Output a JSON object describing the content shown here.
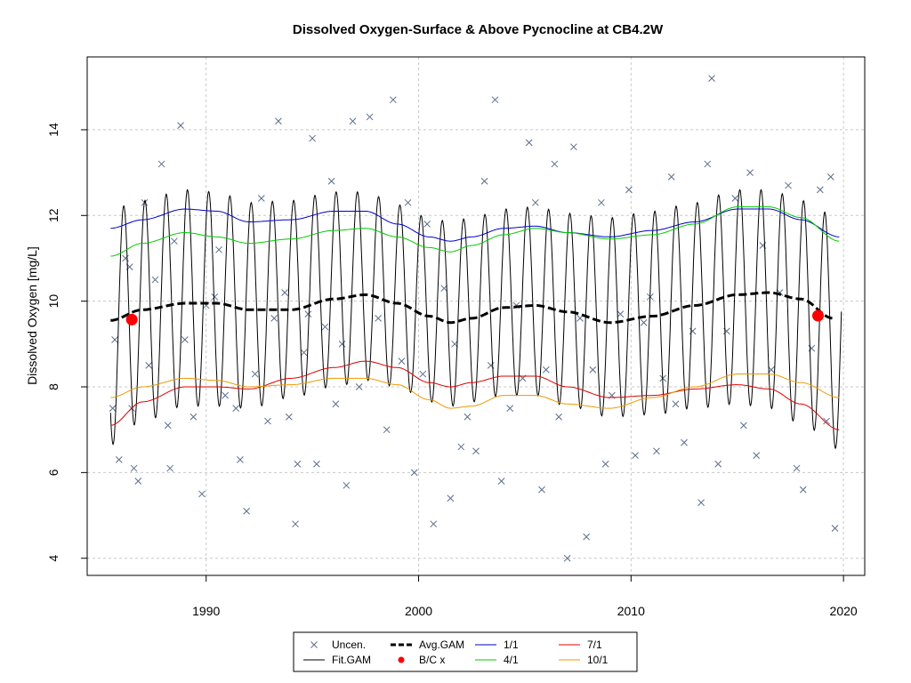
{
  "chart_data": {
    "type": "line",
    "title": "Dissolved Oxygen-Surface & Above Pycnocline at CB4.2W",
    "xlabel": "",
    "ylabel": "Dissolved Oxygen [mg/L]",
    "xlim": [
      1984.4,
      2021.0
    ],
    "ylim": [
      3.6,
      15.7
    ],
    "xticks": [
      1990,
      2000,
      2010,
      2020
    ],
    "yticks": [
      4,
      6,
      8,
      10,
      12,
      14
    ],
    "grid": true,
    "legend_position": "bottom-center",
    "legend": [
      {
        "label": "Uncen.",
        "kind": "cross",
        "color": "#5a6e8c"
      },
      {
        "label": "Avg.GAM",
        "kind": "dashed-line",
        "color": "#000000"
      },
      {
        "label": "1/1",
        "kind": "line",
        "color": "#0000cc"
      },
      {
        "label": "7/1",
        "kind": "line",
        "color": "#dd0000"
      },
      {
        "label": "Fit.GAM",
        "kind": "line",
        "color": "#000000"
      },
      {
        "label": "B/C x",
        "kind": "dot",
        "color": "#ff0000"
      },
      {
        "label": "4/1",
        "kind": "line",
        "color": "#00cc00"
      },
      {
        "label": "10/1",
        "kind": "line",
        "color": "#ee9900"
      }
    ],
    "series": [
      {
        "name": "1/1",
        "color": "#0000cc",
        "x": [
          1985.5,
          1987,
          1989,
          1990.5,
          1992,
          1994,
          1996,
          1997.5,
          1999,
          2000.5,
          2001.5,
          2002.5,
          2004,
          2005.5,
          2007,
          2009,
          2011,
          2013,
          2015,
          2016.5,
          2018,
          2019.8
        ],
        "values": [
          11.7,
          11.9,
          12.15,
          12.1,
          11.85,
          11.9,
          12.1,
          12.1,
          11.8,
          11.5,
          11.4,
          11.5,
          11.7,
          11.75,
          11.6,
          11.5,
          11.65,
          11.85,
          12.15,
          12.15,
          11.9,
          11.5
        ]
      },
      {
        "name": "4/1",
        "color": "#00cc00",
        "x": [
          1985.5,
          1987,
          1989,
          1990.5,
          1992,
          1994,
          1996,
          1997.5,
          1999,
          2000.5,
          2001.5,
          2002.5,
          2004,
          2005.5,
          2007,
          2009,
          2011,
          2013,
          2015,
          2016.5,
          2018,
          2019.8
        ],
        "values": [
          11.05,
          11.35,
          11.6,
          11.5,
          11.35,
          11.45,
          11.65,
          11.7,
          11.5,
          11.25,
          11.15,
          11.3,
          11.55,
          11.7,
          11.6,
          11.45,
          11.55,
          11.8,
          12.2,
          12.2,
          11.95,
          11.4
        ]
      },
      {
        "name": "7/1",
        "color": "#dd0000",
        "x": [
          1985.5,
          1987,
          1989,
          1990.5,
          1992,
          1994,
          1996,
          1997.5,
          1999,
          2000.5,
          2001.5,
          2002.5,
          2004,
          2005.5,
          2007,
          2009,
          2011,
          2013,
          2015,
          2016.5,
          2018,
          2019.8
        ],
        "values": [
          7.1,
          7.65,
          8.0,
          8.0,
          7.95,
          8.2,
          8.45,
          8.6,
          8.45,
          8.1,
          8.0,
          8.1,
          8.25,
          8.25,
          8.0,
          7.75,
          7.8,
          7.95,
          8.05,
          7.95,
          7.6,
          7.0
        ]
      },
      {
        "name": "10/1",
        "color": "#ee9900",
        "x": [
          1985.5,
          1987,
          1989,
          1990.5,
          1992,
          1994,
          1996,
          1997.5,
          1999,
          2000.5,
          2001.5,
          2002.5,
          2004,
          2005.5,
          2007,
          2009,
          2011,
          2013,
          2015,
          2016.5,
          2018,
          2019.8
        ],
        "values": [
          7.75,
          8.0,
          8.2,
          8.15,
          8.0,
          8.05,
          8.2,
          8.2,
          8.05,
          7.7,
          7.5,
          7.55,
          7.8,
          7.8,
          7.6,
          7.5,
          7.75,
          8.0,
          8.3,
          8.3,
          8.1,
          7.75
        ]
      },
      {
        "name": "Avg.GAM",
        "color": "#000000",
        "dash": true,
        "x": [
          1985.5,
          1987,
          1989,
          1990.5,
          1992,
          1994,
          1996,
          1997.5,
          1999,
          2000.5,
          2001.5,
          2002.5,
          2004,
          2005.5,
          2007,
          2009,
          2011,
          2013,
          2015,
          2016.5,
          2018,
          2019.5
        ],
        "values": [
          9.55,
          9.8,
          9.95,
          9.95,
          9.8,
          9.8,
          10.05,
          10.15,
          9.95,
          9.65,
          9.5,
          9.6,
          9.85,
          9.9,
          9.75,
          9.5,
          9.65,
          9.9,
          10.15,
          10.2,
          10.05,
          9.6
        ]
      },
      {
        "name": "Fit.GAM",
        "color": "#000000",
        "description": "seasonal oscillation, one peak per year, peaks near the 1/1 curve and troughs near the 7/1 curve",
        "x_range": [
          1985.5,
          2019.9
        ]
      }
    ],
    "bc_points": [
      {
        "label": "B/C x",
        "x": 1986.5,
        "y": 9.57
      },
      {
        "label": "B/C x",
        "x": 2018.8,
        "y": 9.66
      }
    ],
    "uncensored_points": {
      "x": [
        1985.6,
        1985.7,
        1985.9,
        1986.2,
        1986.4,
        1986.5,
        1986.6,
        1986.8,
        1987.1,
        1987.3,
        1987.6,
        1987.9,
        1988.2,
        1988.3,
        1988.5,
        1988.8,
        1989.0,
        1989.4,
        1989.8,
        1990.0,
        1990.4,
        1990.6,
        1990.9,
        1991.4,
        1991.6,
        1991.9,
        1992.3,
        1992.6,
        1992.9,
        1993.2,
        1993.4,
        1993.7,
        1993.9,
        1994.2,
        1994.3,
        1994.6,
        1994.8,
        1995.0,
        1995.2,
        1995.6,
        1995.9,
        1996.1,
        1996.4,
        1996.6,
        1996.9,
        1997.2,
        1997.7,
        1998.1,
        1998.5,
        1998.8,
        1999.2,
        1999.5,
        1999.8,
        2000.2,
        2000.4,
        2000.7,
        2001.2,
        2001.5,
        2001.7,
        2002.0,
        2002.3,
        2002.7,
        2003.1,
        2003.4,
        2003.6,
        2003.9,
        2004.3,
        2004.6,
        2004.9,
        2005.2,
        2005.5,
        2005.8,
        2006.0,
        2006.4,
        2006.6,
        2007.0,
        2007.3,
        2007.6,
        2007.9,
        2008.2,
        2008.6,
        2008.8,
        2009.1,
        2009.5,
        2009.9,
        2010.2,
        2010.6,
        2010.9,
        2011.2,
        2011.5,
        2011.9,
        2012.1,
        2012.5,
        2012.9,
        2013.3,
        2013.6,
        2013.8,
        2014.1,
        2014.5,
        2014.9,
        2015.3,
        2015.6,
        2015.9,
        2016.2,
        2016.6,
        2017.0,
        2017.4,
        2017.8,
        2018.1,
        2018.5,
        2018.9,
        2019.2,
        2019.4,
        2019.6
      ],
      "y": [
        7.5,
        9.1,
        6.3,
        11.0,
        10.8,
        7.5,
        6.1,
        5.8,
        12.3,
        8.5,
        10.5,
        13.2,
        7.1,
        6.1,
        11.4,
        14.1,
        9.1,
        7.3,
        5.5,
        9.9,
        10.1,
        11.2,
        7.8,
        7.5,
        6.3,
        5.1,
        8.3,
        12.4,
        7.2,
        9.6,
        14.2,
        10.2,
        7.3,
        4.8,
        6.2,
        8.8,
        9.7,
        13.8,
        6.2,
        9.4,
        12.8,
        7.6,
        9.0,
        5.7,
        14.2,
        8.0,
        14.3,
        9.6,
        7.0,
        14.7,
        8.6,
        12.3,
        6.0,
        8.3,
        11.8,
        4.8,
        10.3,
        5.4,
        9.0,
        6.6,
        7.3,
        6.5,
        12.8,
        8.5,
        14.7,
        5.8,
        7.5,
        9.9,
        8.2,
        13.7,
        12.3,
        5.6,
        8.4,
        13.2,
        7.3,
        4.0,
        13.6,
        9.6,
        4.5,
        8.4,
        12.3,
        6.2,
        7.8,
        9.7,
        12.6,
        6.4,
        9.5,
        10.1,
        6.5,
        8.2,
        12.9,
        7.6,
        6.7,
        9.3,
        5.3,
        13.2,
        15.2,
        6.2,
        9.3,
        12.4,
        7.1,
        13.0,
        6.4,
        11.3,
        8.4,
        10.2,
        12.7,
        6.1,
        5.6,
        8.9,
        12.6,
        7.2,
        12.9,
        4.7
      ]
    }
  }
}
